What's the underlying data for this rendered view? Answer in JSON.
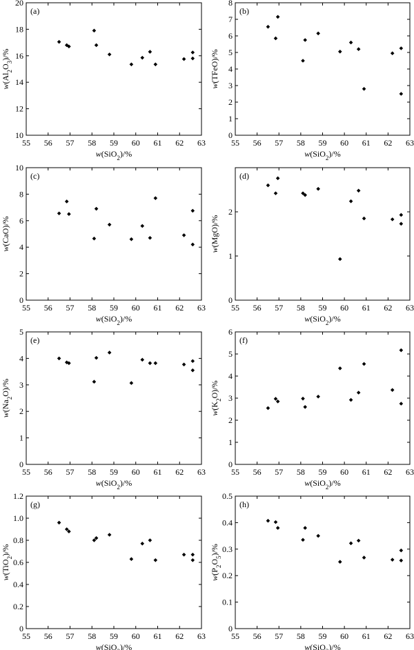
{
  "figure": {
    "x_label": {
      "italic": "w",
      "base": "(SiO",
      "sub": "2",
      "tail": ")/%"
    }
  },
  "chart_data": [
    {
      "type": "scatter",
      "panel": "(a)",
      "ylabel": {
        "italic": "w",
        "parts": [
          [
            "(Al",
            ""
          ],
          [
            "2",
            "sub"
          ],
          [
            "O",
            ""
          ],
          [
            "3",
            "sub"
          ],
          [
            ")/%",
            ""
          ]
        ]
      },
      "xlim": [
        55,
        63
      ],
      "ylim": [
        10,
        20
      ],
      "xticks": [
        55,
        56,
        57,
        58,
        59,
        60,
        61,
        62,
        63
      ],
      "yticks": [
        10,
        12,
        14,
        16,
        18,
        20
      ],
      "points": [
        [
          56.5,
          17.05
        ],
        [
          56.85,
          16.8
        ],
        [
          56.95,
          16.7
        ],
        [
          58.1,
          17.9
        ],
        [
          58.2,
          16.8
        ],
        [
          58.8,
          16.1
        ],
        [
          59.8,
          15.35
        ],
        [
          60.3,
          15.85
        ],
        [
          60.65,
          16.3
        ],
        [
          60.9,
          15.35
        ],
        [
          62.2,
          15.75
        ],
        [
          62.6,
          16.25
        ],
        [
          62.6,
          15.8
        ]
      ]
    },
    {
      "type": "scatter",
      "panel": "(b)",
      "ylabel": {
        "italic": "w",
        "parts": [
          [
            "(TFeO)/%",
            ""
          ]
        ]
      },
      "xlim": [
        55,
        63
      ],
      "ylim": [
        0,
        8
      ],
      "xticks": [
        55,
        56,
        57,
        58,
        59,
        60,
        61,
        62,
        63
      ],
      "yticks": [
        0,
        1,
        2,
        3,
        4,
        5,
        6,
        7,
        8
      ],
      "points": [
        [
          56.5,
          6.55
        ],
        [
          56.85,
          5.85
        ],
        [
          56.95,
          7.15
        ],
        [
          58.1,
          4.5
        ],
        [
          58.2,
          5.75
        ],
        [
          58.8,
          6.15
        ],
        [
          59.8,
          5.05
        ],
        [
          60.3,
          5.6
        ],
        [
          60.65,
          5.2
        ],
        [
          60.9,
          2.8
        ],
        [
          62.2,
          4.95
        ],
        [
          62.6,
          5.25
        ],
        [
          62.6,
          2.5
        ]
      ]
    },
    {
      "type": "scatter",
      "panel": "(c)",
      "ylabel": {
        "italic": "w",
        "parts": [
          [
            "(CaO)/%",
            ""
          ]
        ]
      },
      "xlim": [
        55,
        63
      ],
      "ylim": [
        0,
        10
      ],
      "xticks": [
        55,
        56,
        57,
        58,
        59,
        60,
        61,
        62,
        63
      ],
      "yticks": [
        0,
        2,
        4,
        6,
        8,
        10
      ],
      "points": [
        [
          56.5,
          6.55
        ],
        [
          56.85,
          7.45
        ],
        [
          56.95,
          6.5
        ],
        [
          58.1,
          4.65
        ],
        [
          58.2,
          6.9
        ],
        [
          58.8,
          5.7
        ],
        [
          59.8,
          4.6
        ],
        [
          60.3,
          5.6
        ],
        [
          60.65,
          4.7
        ],
        [
          60.9,
          7.7
        ],
        [
          62.2,
          4.9
        ],
        [
          62.6,
          6.75
        ],
        [
          62.6,
          4.2
        ]
      ]
    },
    {
      "type": "scatter",
      "panel": "(d)",
      "ylabel": {
        "italic": "w",
        "parts": [
          [
            "(MgO)/%",
            ""
          ]
        ]
      },
      "xlim": [
        55,
        63
      ],
      "ylim": [
        0,
        3
      ],
      "xticks": [
        55,
        56,
        57,
        58,
        59,
        60,
        61,
        62,
        63
      ],
      "yticks": [
        0,
        1,
        2
      ],
      "points": [
        [
          56.5,
          2.6
        ],
        [
          56.85,
          2.42
        ],
        [
          56.95,
          2.76
        ],
        [
          58.1,
          2.42
        ],
        [
          58.2,
          2.38
        ],
        [
          58.8,
          2.52
        ],
        [
          59.8,
          0.93
        ],
        [
          60.3,
          2.24
        ],
        [
          60.65,
          2.48
        ],
        [
          60.9,
          1.85
        ],
        [
          62.2,
          1.83
        ],
        [
          62.6,
          1.93
        ],
        [
          62.6,
          1.73
        ]
      ]
    },
    {
      "type": "scatter",
      "panel": "(e)",
      "ylabel": {
        "italic": "w",
        "parts": [
          [
            "(Na",
            ""
          ],
          [
            "2",
            "sub"
          ],
          [
            "O)/%",
            ""
          ]
        ]
      },
      "xlim": [
        55,
        63
      ],
      "ylim": [
        0,
        5
      ],
      "xticks": [
        55,
        56,
        57,
        58,
        59,
        60,
        61,
        62,
        63
      ],
      "yticks": [
        0,
        1,
        2,
        3,
        4,
        5
      ],
      "points": [
        [
          56.5,
          4.0
        ],
        [
          56.85,
          3.85
        ],
        [
          56.95,
          3.82
        ],
        [
          58.1,
          3.12
        ],
        [
          58.2,
          4.02
        ],
        [
          58.8,
          4.22
        ],
        [
          59.8,
          3.07
        ],
        [
          60.3,
          3.95
        ],
        [
          60.65,
          3.82
        ],
        [
          60.9,
          3.82
        ],
        [
          62.2,
          3.77
        ],
        [
          62.6,
          3.9
        ],
        [
          62.6,
          3.55
        ]
      ]
    },
    {
      "type": "scatter",
      "panel": "(f)",
      "ylabel": {
        "italic": "w",
        "parts": [
          [
            "(K",
            ""
          ],
          [
            "2",
            "sub"
          ],
          [
            "O)/%",
            ""
          ]
        ]
      },
      "xlim": [
        55,
        63
      ],
      "ylim": [
        0,
        6
      ],
      "xticks": [
        55,
        56,
        57,
        58,
        59,
        60,
        61,
        62,
        63
      ],
      "yticks": [
        0,
        1,
        2,
        3,
        4,
        5,
        6
      ],
      "points": [
        [
          56.5,
          2.55
        ],
        [
          56.85,
          2.97
        ],
        [
          56.95,
          2.85
        ],
        [
          58.1,
          2.98
        ],
        [
          58.2,
          2.6
        ],
        [
          58.8,
          3.07
        ],
        [
          59.8,
          4.35
        ],
        [
          60.3,
          2.92
        ],
        [
          60.65,
          3.25
        ],
        [
          60.9,
          4.55
        ],
        [
          62.2,
          3.37
        ],
        [
          62.6,
          5.17
        ],
        [
          62.6,
          2.75
        ]
      ]
    },
    {
      "type": "scatter",
      "panel": "(g)",
      "ylabel": {
        "italic": "w",
        "parts": [
          [
            "(TiO",
            ""
          ],
          [
            "2",
            "sub"
          ],
          [
            ")/%",
            ""
          ]
        ]
      },
      "xlim": [
        55,
        63
      ],
      "ylim": [
        0,
        1.2
      ],
      "xticks": [
        55,
        56,
        57,
        58,
        59,
        60,
        61,
        62,
        63
      ],
      "yticks": [
        0,
        0.2,
        0.4,
        0.6,
        0.8,
        1.0,
        1.2
      ],
      "ytick_labels": [
        "0",
        "0.2",
        "0.4",
        "0.6",
        "0.8",
        "1.0",
        "1.2"
      ],
      "points": [
        [
          56.5,
          0.96
        ],
        [
          56.85,
          0.9
        ],
        [
          56.95,
          0.88
        ],
        [
          58.1,
          0.8
        ],
        [
          58.2,
          0.82
        ],
        [
          58.8,
          0.85
        ],
        [
          59.8,
          0.63
        ],
        [
          60.3,
          0.77
        ],
        [
          60.65,
          0.8
        ],
        [
          60.9,
          0.62
        ],
        [
          62.2,
          0.67
        ],
        [
          62.6,
          0.67
        ],
        [
          62.6,
          0.62
        ]
      ]
    },
    {
      "type": "scatter",
      "panel": "(h)",
      "ylabel": {
        "italic": "w",
        "parts": [
          [
            "(P",
            ""
          ],
          [
            "2",
            "sub"
          ],
          [
            "O",
            ""
          ],
          [
            "5",
            "sub"
          ],
          [
            ")/%",
            ""
          ]
        ]
      },
      "xlim": [
        55,
        63
      ],
      "ylim": [
        0,
        0.5
      ],
      "xticks": [
        55,
        56,
        57,
        58,
        59,
        60,
        61,
        62,
        63
      ],
      "yticks": [
        0,
        0.1,
        0.2,
        0.3,
        0.4,
        0.5
      ],
      "ytick_labels": [
        "0",
        "0.1",
        "0.2",
        "0.3",
        "0.4",
        "0.5"
      ],
      "points": [
        [
          56.5,
          0.407
        ],
        [
          56.85,
          0.402
        ],
        [
          56.95,
          0.38
        ],
        [
          58.1,
          0.335
        ],
        [
          58.2,
          0.38
        ],
        [
          58.8,
          0.35
        ],
        [
          59.8,
          0.252
        ],
        [
          60.3,
          0.322
        ],
        [
          60.65,
          0.332
        ],
        [
          60.9,
          0.268
        ],
        [
          62.2,
          0.26
        ],
        [
          62.6,
          0.295
        ],
        [
          62.6,
          0.257
        ]
      ]
    }
  ]
}
